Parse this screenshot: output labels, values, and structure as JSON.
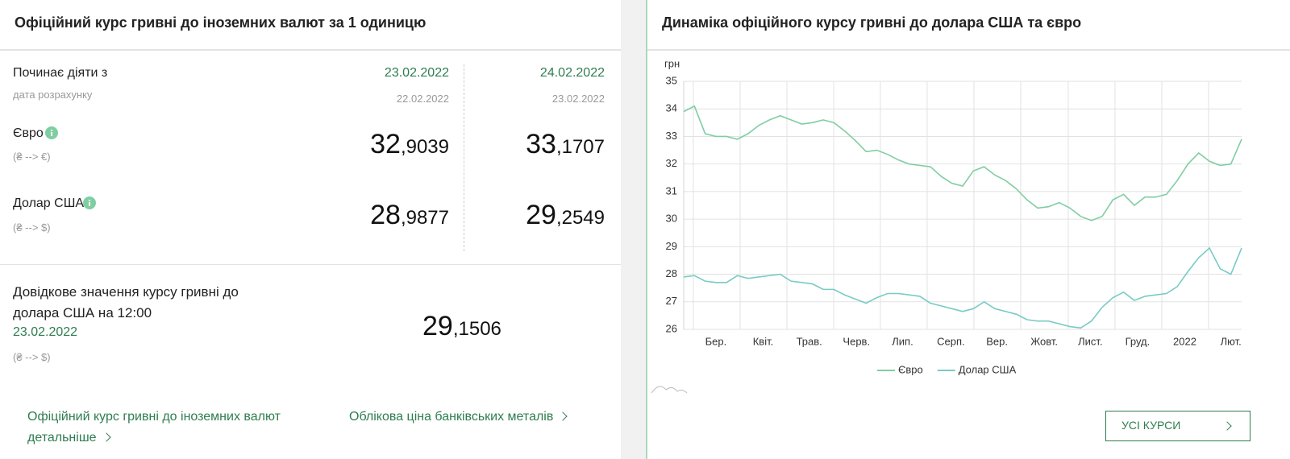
{
  "left_panel": {
    "title": "Офіційний курс гривні до іноземних валют за 1 одиницю",
    "effective_from": "Починає діяти з",
    "calc_date_label": "дата розрахунку",
    "euro_label": "Євро",
    "euro_pair": "(₴ --> €)",
    "usd_label": "Долар США",
    "usd_pair": "(₴ --> $)",
    "columns": [
      {
        "date": "23.02.2022",
        "calc_date": "22.02.2022",
        "euro": {
          "whole": "32",
          "fraction": ",9039"
        },
        "usd": {
          "whole": "28",
          "fraction": ",9877"
        }
      },
      {
        "date": "24.02.2022",
        "calc_date": "23.02.2022",
        "euro": {
          "whole": "33",
          "fraction": ",1707"
        },
        "usd": {
          "whole": "29",
          "fraction": ",2549"
        }
      }
    ],
    "reference": {
      "text": "Довідкове значення курсу гривні до долара США на 12:00",
      "date": "23.02.2022",
      "pair": "(₴ --> $)",
      "rate": {
        "whole": "29",
        "fraction": ",1506"
      }
    },
    "links": [
      "Офіційний курс гривні до іноземних валют детальніше",
      "Облікова ціна банківських металів"
    ]
  },
  "right_panel": {
    "title": "Динаміка офіційного курсу гривні до долара США та євро",
    "button": "УСІ КУРСИ"
  },
  "chart_data": {
    "type": "line",
    "y_label": "грн",
    "x": [
      0,
      1,
      2,
      3,
      4,
      5,
      6,
      7,
      8,
      9,
      10,
      11,
      12,
      13,
      14,
      15,
      16,
      17,
      18,
      19,
      20,
      21,
      22,
      23,
      24,
      25,
      26,
      27,
      28,
      29,
      30,
      31,
      32,
      33,
      34,
      35,
      36,
      37,
      38,
      39,
      40,
      41,
      42,
      43,
      44,
      45,
      46,
      47,
      48,
      49,
      50,
      51,
      52
    ],
    "xlim": [
      0,
      52
    ],
    "xticks": [
      {
        "value": 3.0,
        "label": "Бер."
      },
      {
        "value": 7.4,
        "label": "Квіт."
      },
      {
        "value": 11.7,
        "label": "Трав."
      },
      {
        "value": 16.1,
        "label": "Черв."
      },
      {
        "value": 20.4,
        "label": "Лип."
      },
      {
        "value": 24.9,
        "label": "Серп."
      },
      {
        "value": 29.2,
        "label": "Вер."
      },
      {
        "value": 33.6,
        "label": "Жовт."
      },
      {
        "value": 37.9,
        "label": "Лист."
      },
      {
        "value": 42.3,
        "label": "Груд."
      },
      {
        "value": 46.7,
        "label": "2022"
      },
      {
        "value": 51.0,
        "label": "Лют."
      }
    ],
    "xgrid": [
      0.9,
      5.26,
      9.62,
      13.98,
      18.33,
      22.69,
      27.05,
      31.41,
      35.84,
      40.2,
      44.56,
      48.92
    ],
    "ylim": [
      26,
      35
    ],
    "yticks": [
      26,
      27,
      28,
      29,
      30,
      31,
      32,
      33,
      34,
      35
    ],
    "grid": true,
    "legend": "bottom",
    "series": [
      {
        "name": "Євро",
        "color": "#7fcea2",
        "values": [
          33.9,
          34.1,
          33.1,
          33.0,
          33.0,
          32.9,
          33.1,
          33.4,
          33.6,
          33.75,
          33.6,
          33.45,
          33.5,
          33.6,
          33.5,
          33.2,
          32.85,
          32.45,
          32.5,
          32.35,
          32.15,
          32.0,
          31.95,
          31.9,
          31.55,
          31.3,
          31.2,
          31.75,
          31.9,
          31.6,
          31.4,
          31.1,
          30.7,
          30.4,
          30.45,
          30.6,
          30.4,
          30.1,
          29.95,
          30.1,
          30.7,
          30.9,
          30.5,
          30.8,
          30.8,
          30.9,
          31.4,
          32.0,
          32.4,
          32.1,
          31.95,
          32.0,
          32.9
        ]
      },
      {
        "name": "Долар США",
        "color": "#78cbc4",
        "values": [
          27.9,
          27.95,
          27.75,
          27.7,
          27.7,
          27.95,
          27.85,
          27.9,
          27.95,
          28.0,
          27.75,
          27.7,
          27.65,
          27.45,
          27.45,
          27.25,
          27.1,
          26.95,
          27.15,
          27.3,
          27.3,
          27.25,
          27.2,
          26.95,
          26.85,
          26.75,
          26.65,
          26.75,
          27.0,
          26.75,
          26.65,
          26.55,
          26.35,
          26.3,
          26.3,
          26.2,
          26.1,
          26.05,
          26.3,
          26.8,
          27.15,
          27.35,
          27.05,
          27.2,
          27.25,
          27.3,
          27.55,
          28.1,
          28.6,
          28.95,
          28.2,
          28.0,
          28.95
        ]
      }
    ]
  }
}
